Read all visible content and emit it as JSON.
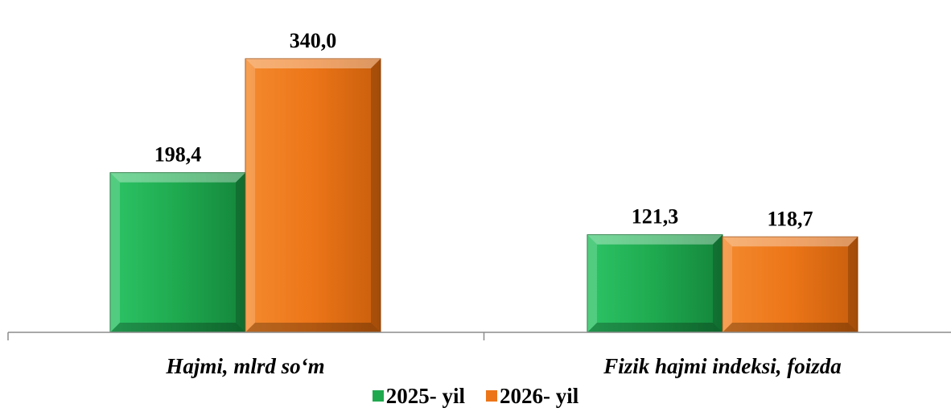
{
  "chart_data": {
    "type": "bar",
    "title": "",
    "xlabel": "",
    "ylabel": "",
    "ylim": [
      0,
      370
    ],
    "grid": false,
    "legend_position": "bottom",
    "categories": [
      "Hajmi, mlrd so‘m",
      "Fizik hajmi indeksi, foizda"
    ],
    "series": [
      {
        "name": "2025- yil",
        "values": [
          198.4,
          121.3
        ],
        "labels": [
          "198,4",
          "121,3"
        ],
        "color": "#1fa94f"
      },
      {
        "name": "2026- yil",
        "values": [
          340.0,
          118.7
        ],
        "labels": [
          "340,0",
          "118,7"
        ],
        "color": "#ec7518"
      }
    ]
  }
}
